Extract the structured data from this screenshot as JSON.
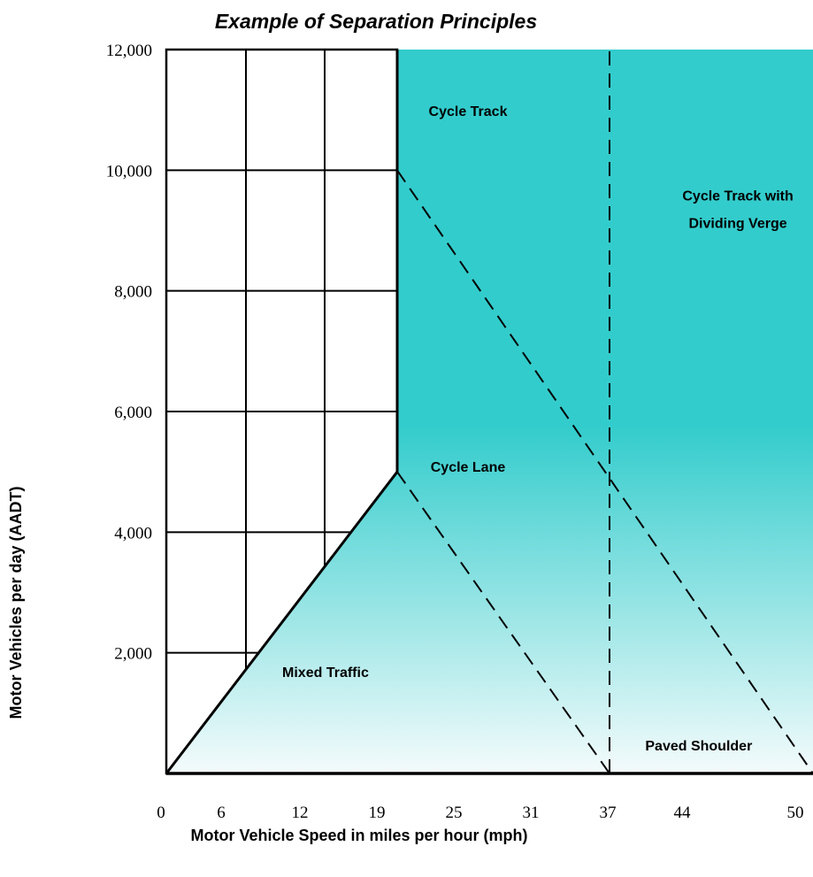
{
  "chart_data": {
    "type": "area",
    "title": "Example of Separation Principles",
    "xlabel": "Motor Vehicle Speed in miles per hour (mph)",
    "ylabel": "Motor Vehicles per day (AADT)",
    "x_ticks": [
      "0",
      "6",
      "12",
      "19",
      "25",
      "31",
      "37",
      "44",
      "50"
    ],
    "y_ticks": [
      {
        "label": "2,000",
        "value": 2000
      },
      {
        "label": "4,000",
        "value": 4000
      },
      {
        "label": "6,000",
        "value": 6000
      },
      {
        "label": "8,000",
        "value": 8000
      },
      {
        "label": "10,000",
        "value": 10000
      },
      {
        "label": "12,000",
        "value": 12000
      }
    ],
    "xlim": [
      0,
      50
    ],
    "ylim": [
      0,
      12000
    ],
    "grid": "only in unshaded region (speed < 19 mph)",
    "regions": [
      {
        "name": "Mixed Traffic",
        "label": "Mixed Traffic"
      },
      {
        "name": "Cycle Lane",
        "label": "Cycle Lane"
      },
      {
        "name": "Cycle Track",
        "label": "Cycle Track"
      },
      {
        "name": "Cycle Track with Dividing Verge",
        "label_lines": [
          "Cycle Track with",
          "Dividing Verge"
        ]
      },
      {
        "name": "Paved Shoulder",
        "label": "Paved Shoulder"
      }
    ],
    "boundaries": [
      {
        "style": "solid",
        "points": [
          [
            0,
            0
          ],
          [
            19,
            5000
          ]
        ]
      },
      {
        "style": "solid",
        "points": [
          [
            19,
            5000
          ],
          [
            19,
            12000
          ]
        ]
      },
      {
        "style": "dashed",
        "points": [
          [
            19,
            5000
          ],
          [
            37,
            0
          ]
        ]
      },
      {
        "style": "dashed",
        "points": [
          [
            19,
            10000
          ],
          [
            50,
            0
          ]
        ]
      },
      {
        "style": "dashed",
        "points": [
          [
            37,
            0
          ],
          [
            37,
            12000
          ]
        ]
      }
    ],
    "colors": {
      "fill": "#33CCCC",
      "fill_light": "#F4FBFC",
      "line": "#000000"
    }
  }
}
